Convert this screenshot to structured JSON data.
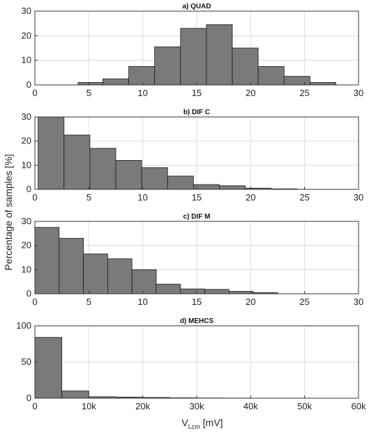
{
  "figure": {
    "ylabel": "Percentage of samples [%]",
    "xlabel_main": "V",
    "xlabel_sub": "Lcm",
    "xlabel_unit": "[mV]"
  },
  "chart_data": [
    {
      "type": "bar",
      "title": "a) QUAD",
      "xlim": [
        0,
        30
      ],
      "ylim": [
        0,
        30
      ],
      "xticks": [
        0,
        5,
        10,
        15,
        20,
        25,
        30
      ],
      "xtick_labels": [
        "0",
        "5",
        "10",
        "15",
        "20",
        "25",
        "30"
      ],
      "yticks": [
        0,
        10,
        20,
        30
      ],
      "ytick_labels": [
        "0",
        "10",
        "20",
        "30"
      ],
      "grid": true,
      "bin_edges": [
        4,
        6.3,
        8.7,
        11.1,
        13.5,
        15.9,
        18.3,
        20.7,
        23.1,
        25.5,
        27.9
      ],
      "values": [
        1,
        2.5,
        7.5,
        15.5,
        23,
        24.5,
        15,
        7.5,
        3.5,
        1
      ],
      "bar_color": "#7a7a7a"
    },
    {
      "type": "bar",
      "title": "b) DIF C",
      "xlim": [
        0,
        30
      ],
      "ylim": [
        0,
        30
      ],
      "xticks": [
        0,
        5,
        10,
        15,
        20,
        25,
        30
      ],
      "xtick_labels": [
        "0",
        "5",
        "10",
        "15",
        "20",
        "25",
        "30"
      ],
      "yticks": [
        0,
        10,
        20,
        30
      ],
      "ytick_labels": [
        "0",
        "10",
        "20",
        "30"
      ],
      "grid": true,
      "bin_edges": [
        0.3,
        2.7,
        5.1,
        7.5,
        9.9,
        12.3,
        14.7,
        17.1,
        19.5,
        21.9,
        24.3
      ],
      "values": [
        30,
        22.5,
        17,
        12,
        9,
        5.5,
        2,
        1.5,
        0.5,
        0.2
      ],
      "bar_color": "#7a7a7a"
    },
    {
      "type": "bar",
      "title": "c) DIF M",
      "xlim": [
        0,
        30
      ],
      "ylim": [
        0,
        30
      ],
      "xticks": [
        0,
        5,
        10,
        15,
        20,
        25,
        30
      ],
      "xtick_labels": [
        "0",
        "5",
        "10",
        "15",
        "20",
        "25",
        "30"
      ],
      "yticks": [
        0,
        10,
        20,
        30
      ],
      "ytick_labels": [
        "0",
        "10",
        "20",
        "30"
      ],
      "grid": true,
      "bin_edges": [
        0,
        2.25,
        4.5,
        6.75,
        9,
        11.25,
        13.5,
        15.75,
        18,
        20.25,
        22.5
      ],
      "values": [
        27.5,
        23,
        16.5,
        14.5,
        10,
        4,
        2,
        1.8,
        1,
        0.5
      ],
      "bar_color": "#7a7a7a"
    },
    {
      "type": "bar",
      "title": "d) MEHCS",
      "xlim": [
        0,
        60000
      ],
      "ylim": [
        0,
        100
      ],
      "xticks": [
        0,
        10000,
        20000,
        30000,
        40000,
        50000,
        60000
      ],
      "xtick_labels": [
        "0",
        "10k",
        "20k",
        "30k",
        "40k",
        "50k",
        "60k"
      ],
      "yticks": [
        0,
        50,
        100
      ],
      "ytick_labels": [
        "0",
        "50",
        "100"
      ],
      "grid": true,
      "bin_edges": [
        0,
        5000,
        10000,
        15000,
        20000,
        25000,
        30000,
        35000,
        40000,
        45000,
        50000
      ],
      "values": [
        84,
        10,
        2,
        1.5,
        1,
        0.5,
        0.3,
        0.2,
        0.1,
        0.1
      ],
      "bar_color": "#7a7a7a"
    }
  ]
}
